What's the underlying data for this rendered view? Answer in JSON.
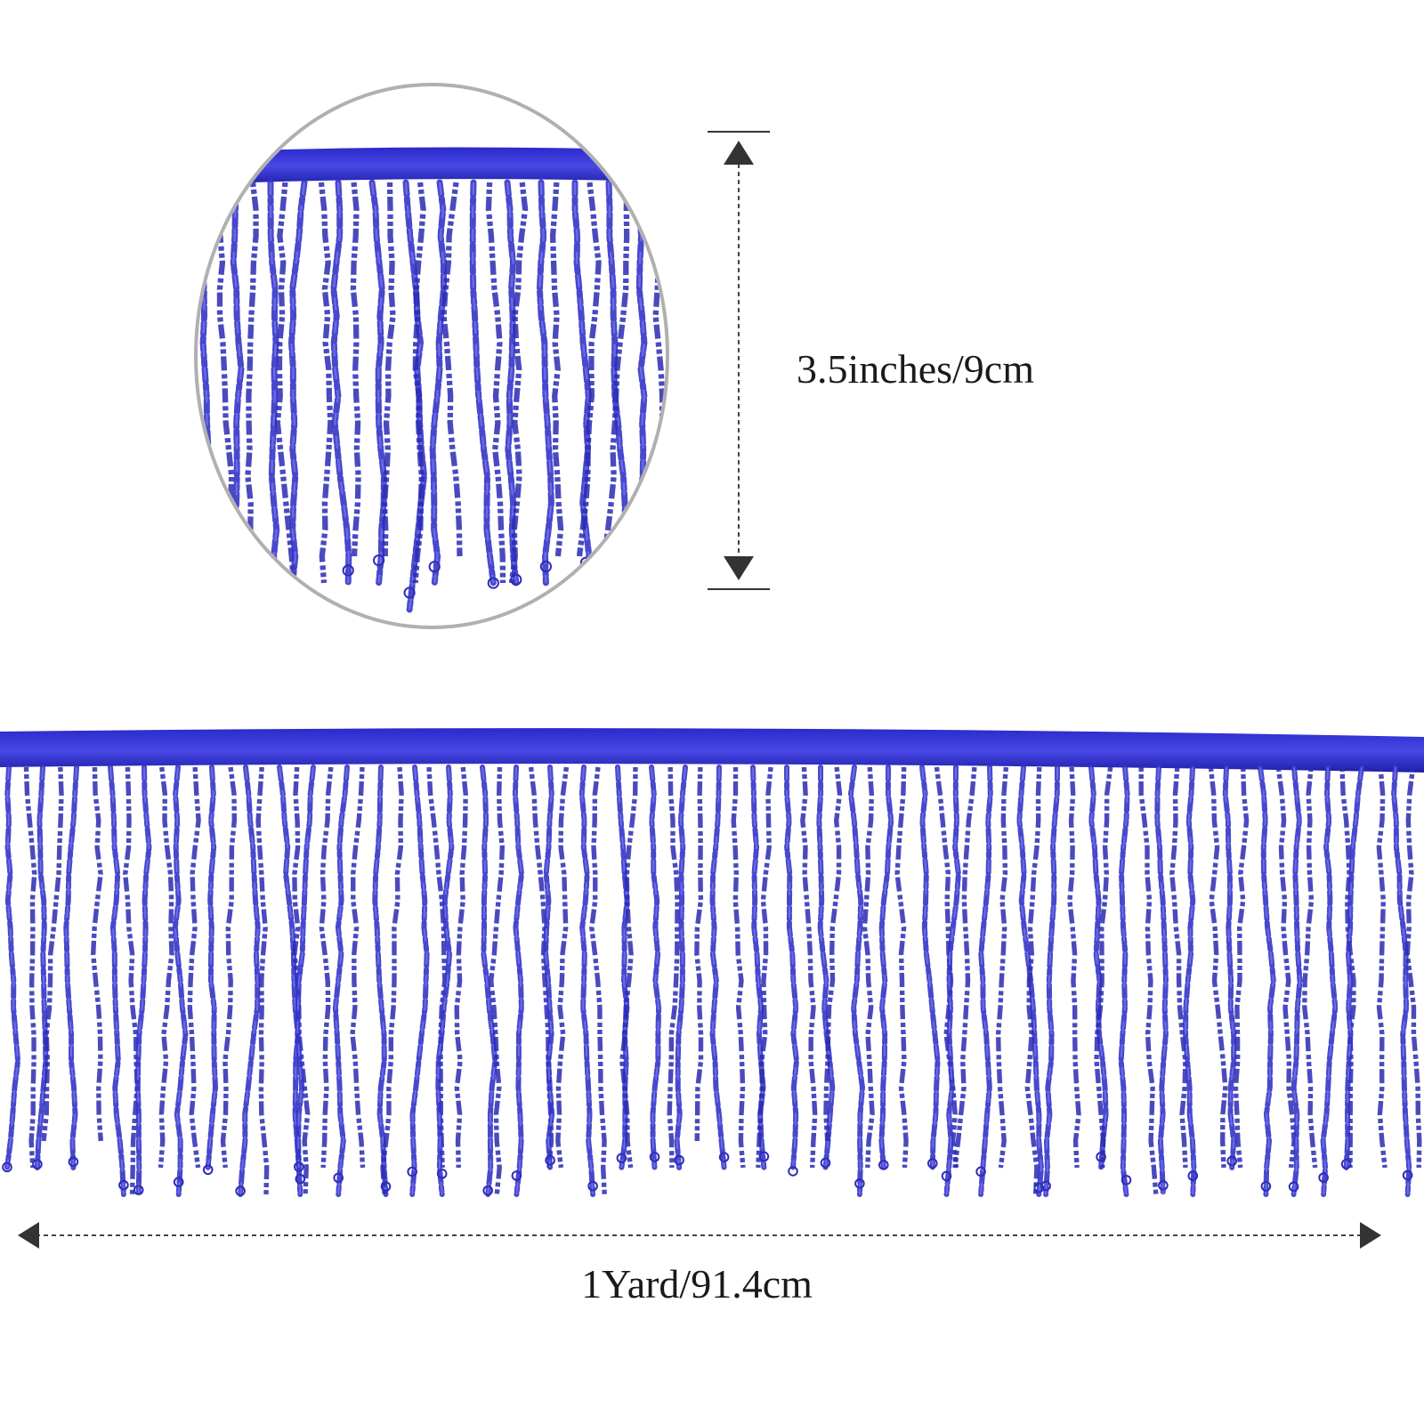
{
  "labels": {
    "height": "3.5inches/9cm",
    "width": "1Yard/91.4cm"
  }
}
